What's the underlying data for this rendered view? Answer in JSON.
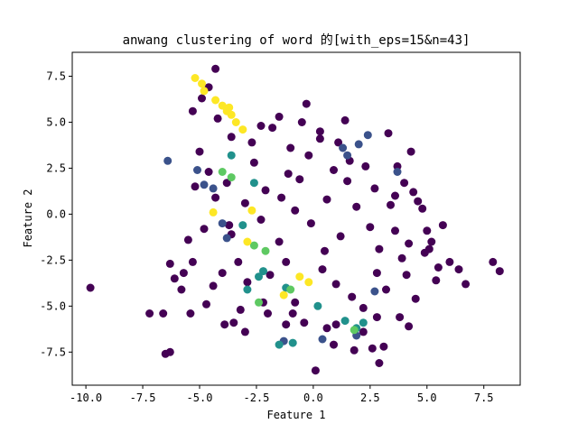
{
  "chart_data": {
    "type": "scatter",
    "title": "anwang clustering of word 的[with_eps=15&n=43]",
    "xlabel": "Feature 1",
    "ylabel": "Feature 2",
    "xlim": [
      -10.6,
      9.1
    ],
    "ylim": [
      -9.3,
      8.8
    ],
    "xticks": [
      -10.0,
      -7.5,
      -5.0,
      -2.5,
      0.0,
      2.5,
      5.0,
      7.5
    ],
    "xtick_labels": [
      "-10.0",
      "-7.5",
      "-5.0",
      "-2.5",
      "0.0",
      "2.5",
      "5.0",
      "7.5"
    ],
    "yticks": [
      -7.5,
      -5.0,
      -2.5,
      0.0,
      2.5,
      5.0,
      7.5
    ],
    "ytick_labels": [
      "-7.5",
      "-5.0",
      "-2.5",
      "0.0",
      "2.5",
      "5.0",
      "7.5"
    ],
    "grid": false,
    "colormap": "viridis",
    "series": [
      {
        "color": "#440154",
        "points": [
          [
            -9.8,
            -4.0
          ],
          [
            -7.2,
            -5.4
          ],
          [
            -6.6,
            -5.4
          ],
          [
            -6.5,
            -7.6
          ],
          [
            -6.3,
            -7.5
          ],
          [
            -6.3,
            -2.7
          ],
          [
            -6.1,
            -3.5
          ],
          [
            -5.8,
            -4.1
          ],
          [
            -5.7,
            -3.2
          ],
          [
            -5.5,
            -1.4
          ],
          [
            -5.4,
            -5.4
          ],
          [
            -5.3,
            -2.6
          ],
          [
            -5.3,
            5.6
          ],
          [
            -5.0,
            3.4
          ],
          [
            -4.9,
            6.3
          ],
          [
            -4.6,
            6.9
          ],
          [
            -4.3,
            7.9
          ],
          [
            -4.2,
            5.2
          ],
          [
            -4.0,
            -3.2
          ],
          [
            -3.9,
            -6.0
          ],
          [
            -3.6,
            4.2
          ],
          [
            -3.5,
            -5.9
          ],
          [
            -3.0,
            -6.4
          ],
          [
            -2.9,
            -3.7
          ],
          [
            -2.3,
            4.8
          ],
          [
            -1.8,
            4.7
          ],
          [
            -1.5,
            5.3
          ],
          [
            -1.2,
            -6.0
          ],
          [
            -0.9,
            -5.4
          ],
          [
            -0.5,
            5.0
          ],
          [
            -0.3,
            6.0
          ],
          [
            0.1,
            -8.5
          ],
          [
            0.3,
            4.5
          ],
          [
            0.6,
            -6.2
          ],
          [
            1.0,
            -6.0
          ],
          [
            1.4,
            5.1
          ],
          [
            1.8,
            -7.4
          ],
          [
            2.2,
            -6.4
          ],
          [
            2.6,
            -7.3
          ],
          [
            2.9,
            -8.1
          ],
          [
            3.1,
            -7.2
          ],
          [
            3.6,
            1.0
          ],
          [
            3.8,
            -5.6
          ],
          [
            4.0,
            1.7
          ],
          [
            4.3,
            3.4
          ],
          [
            4.5,
            -4.6
          ],
          [
            4.9,
            -2.1
          ],
          [
            5.4,
            -3.6
          ],
          [
            5.7,
            -0.6
          ],
          [
            6.0,
            -2.6
          ],
          [
            6.4,
            -3.0
          ],
          [
            6.7,
            -3.8
          ],
          [
            7.9,
            -2.6
          ],
          [
            8.2,
            -3.1
          ],
          [
            -2.2,
            -4.8
          ],
          [
            2.8,
            -5.6
          ],
          [
            3.3,
            4.4
          ],
          [
            -1.0,
            3.6
          ],
          [
            -4.6,
            2.3
          ],
          [
            4.8,
            0.3
          ],
          [
            5.1,
            -1.9
          ],
          [
            -3.2,
            -5.2
          ],
          [
            0.9,
            -7.1
          ],
          [
            4.2,
            -6.1
          ],
          [
            -5.2,
            1.5
          ],
          [
            -4.8,
            -0.8
          ],
          [
            -4.4,
            -3.9
          ],
          [
            -3.8,
            1.7
          ],
          [
            -3.3,
            -2.6
          ],
          [
            -2.6,
            2.8
          ],
          [
            -2.0,
            -5.4
          ],
          [
            -1.4,
            0.9
          ],
          [
            -0.8,
            -4.8
          ],
          [
            -0.2,
            3.2
          ],
          [
            0.5,
            -2.0
          ],
          [
            1.1,
            3.9
          ],
          [
            1.7,
            -4.5
          ],
          [
            2.3,
            2.6
          ],
          [
            2.8,
            -3.2
          ],
          [
            3.4,
            0.5
          ],
          [
            3.9,
            -2.4
          ],
          [
            4.4,
            1.2
          ],
          [
            5.0,
            -0.9
          ],
          [
            5.5,
            -2.9
          ],
          [
            -4.7,
            -4.9
          ],
          [
            -3.6,
            -1.1
          ],
          [
            -2.7,
            3.9
          ],
          [
            -1.9,
            -3.3
          ],
          [
            -1.1,
            2.2
          ],
          [
            -0.4,
            -5.9
          ],
          [
            0.3,
            4.1
          ],
          [
            1.0,
            -3.8
          ],
          [
            1.6,
            2.9
          ],
          [
            2.2,
            -5.1
          ],
          [
            2.7,
            1.4
          ],
          [
            3.2,
            -4.1
          ],
          [
            3.7,
            2.6
          ],
          [
            4.1,
            -3.3
          ],
          [
            4.6,
            0.7
          ],
          [
            5.2,
            -1.5
          ],
          [
            -1.5,
            -1.5
          ],
          [
            -0.8,
            0.2
          ],
          [
            -0.1,
            -0.5
          ],
          [
            0.6,
            0.8
          ],
          [
            1.2,
            -1.2
          ],
          [
            1.9,
            0.4
          ],
          [
            2.5,
            -0.7
          ],
          [
            -2.3,
            -0.3
          ],
          [
            -3.0,
            0.6
          ],
          [
            -3.7,
            -0.6
          ],
          [
            -4.3,
            0.9
          ],
          [
            -1.2,
            -2.6
          ],
          [
            0.4,
            -3.0
          ],
          [
            1.5,
            1.8
          ],
          [
            2.9,
            -1.9
          ],
          [
            -2.1,
            1.3
          ],
          [
            -0.6,
            1.9
          ],
          [
            0.9,
            2.4
          ],
          [
            3.6,
            -0.9
          ],
          [
            4.2,
            -1.6
          ]
        ]
      },
      {
        "color": "#3b528b",
        "points": [
          [
            -6.4,
            2.9
          ],
          [
            -5.1,
            2.4
          ],
          [
            -4.8,
            1.6
          ],
          [
            -4.4,
            1.4
          ],
          [
            -4.0,
            -0.5
          ],
          [
            -3.8,
            -1.3
          ],
          [
            1.3,
            3.6
          ],
          [
            1.5,
            3.2
          ],
          [
            2.0,
            3.8
          ],
          [
            2.4,
            4.3
          ],
          [
            2.7,
            -4.2
          ],
          [
            3.7,
            2.3
          ],
          [
            -1.3,
            -6.9
          ],
          [
            0.4,
            -6.8
          ],
          [
            1.9,
            -6.6
          ]
        ]
      },
      {
        "color": "#21918c",
        "points": [
          [
            -3.1,
            -0.6
          ],
          [
            -2.9,
            -4.1
          ],
          [
            -2.6,
            1.7
          ],
          [
            -2.4,
            -3.4
          ],
          [
            -2.2,
            -3.1
          ],
          [
            -1.5,
            -7.1
          ],
          [
            -1.2,
            -4.0
          ],
          [
            -0.9,
            -7.0
          ],
          [
            0.2,
            -5.0
          ],
          [
            1.4,
            -5.8
          ],
          [
            1.9,
            -6.2
          ],
          [
            2.2,
            -5.9
          ],
          [
            -3.6,
            3.2
          ]
        ]
      },
      {
        "color": "#5ec962",
        "points": [
          [
            -2.6,
            -1.7
          ],
          [
            -2.4,
            -4.8
          ],
          [
            -2.1,
            -2.0
          ],
          [
            -1.0,
            -4.1
          ],
          [
            -3.6,
            2.0
          ],
          [
            -4.0,
            2.3
          ],
          [
            1.8,
            -6.3
          ]
        ]
      },
      {
        "color": "#fde725",
        "points": [
          [
            -5.2,
            7.4
          ],
          [
            -4.9,
            7.1
          ],
          [
            -4.8,
            6.7
          ],
          [
            -4.0,
            5.9
          ],
          [
            -3.8,
            5.6
          ],
          [
            -3.6,
            5.4
          ],
          [
            -3.4,
            5.0
          ],
          [
            -3.1,
            4.6
          ],
          [
            -3.7,
            5.8
          ],
          [
            -4.3,
            6.2
          ],
          [
            -4.4,
            0.1
          ],
          [
            -2.9,
            -1.5
          ],
          [
            -1.3,
            -4.4
          ],
          [
            -0.6,
            -3.4
          ],
          [
            -0.2,
            -3.7
          ],
          [
            -2.7,
            0.2
          ]
        ]
      }
    ]
  }
}
